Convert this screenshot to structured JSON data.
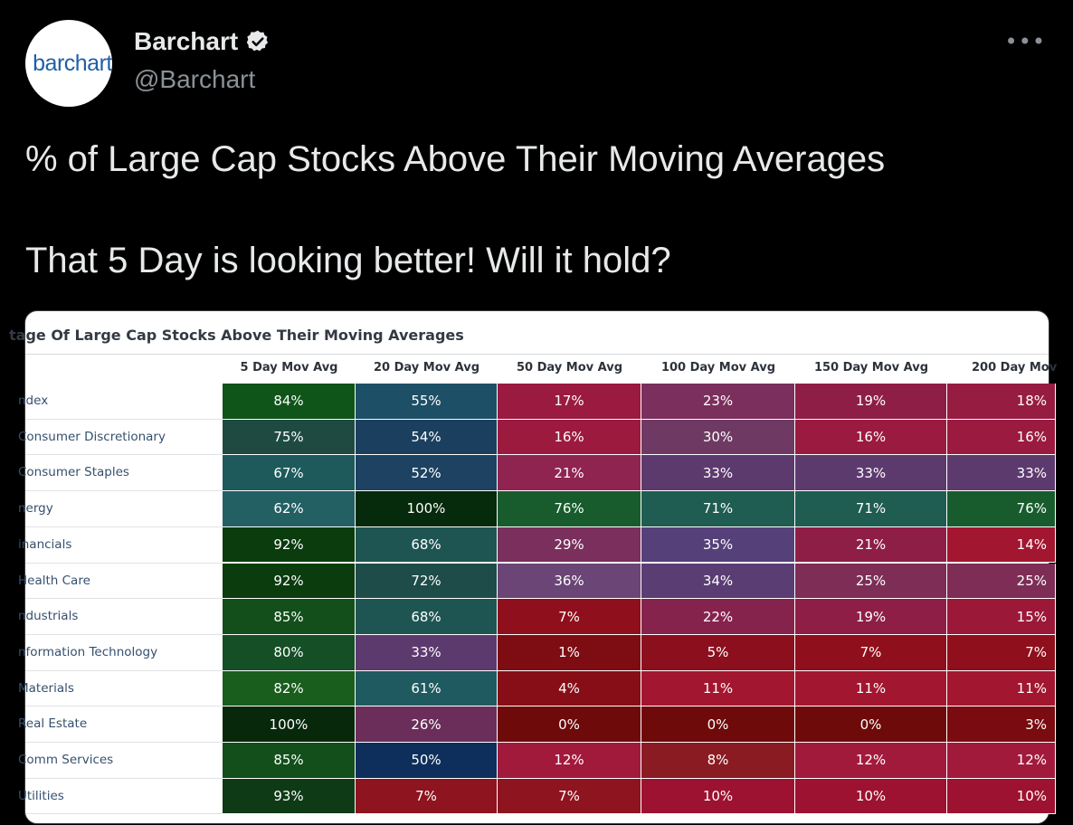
{
  "tweet": {
    "avatar_text": "barchart",
    "display_name": "Barchart",
    "handle": "@Barchart",
    "more_icon": "more-horizontal-icon",
    "verified_icon": "verified-badge-icon",
    "text_line1": "% of Large Cap Stocks Above Their Moving Averages",
    "text_line2": "That 5 Day is looking better!  Will it hold?"
  },
  "table": {
    "title": "tage Of Large Cap Stocks Above Their Moving Averages",
    "columns": [
      "5 Day Mov Avg",
      "20 Day Mov Avg",
      "50 Day Mov Avg",
      "100 Day Mov Avg",
      "150 Day Mov Avg",
      "200 Day Mov"
    ],
    "rows": [
      {
        "label": "ndex",
        "values": [
          "84%",
          "55%",
          "17%",
          "23%",
          "19%",
          "18%"
        ]
      },
      {
        "label": "Consumer Discretionary",
        "values": [
          "75%",
          "54%",
          "16%",
          "30%",
          "16%",
          "16%"
        ]
      },
      {
        "label": "Consumer Staples",
        "values": [
          "67%",
          "52%",
          "21%",
          "33%",
          "33%",
          "33%"
        ]
      },
      {
        "label": "nergy",
        "values": [
          "62%",
          "100%",
          "76%",
          "71%",
          "71%",
          "76%"
        ]
      },
      {
        "label": "inancials",
        "values": [
          "92%",
          "68%",
          "29%",
          "35%",
          "21%",
          "14%"
        ]
      },
      {
        "label": "Health Care",
        "values": [
          "92%",
          "72%",
          "36%",
          "34%",
          "25%",
          "25%"
        ]
      },
      {
        "label": "ndustrials",
        "values": [
          "85%",
          "68%",
          "7%",
          "22%",
          "19%",
          "15%"
        ]
      },
      {
        "label": "nformation Technology",
        "values": [
          "80%",
          "33%",
          "1%",
          "5%",
          "7%",
          "7%"
        ]
      },
      {
        "label": "Materials",
        "values": [
          "82%",
          "61%",
          "4%",
          "11%",
          "11%",
          "11%"
        ]
      },
      {
        "label": "Real Estate",
        "values": [
          "100%",
          "26%",
          "0%",
          "0%",
          "0%",
          "3%"
        ]
      },
      {
        "label": "Comm Services",
        "values": [
          "85%",
          "50%",
          "12%",
          "8%",
          "12%",
          "12%"
        ]
      },
      {
        "label": "Utilities",
        "values": [
          "93%",
          "7%",
          "7%",
          "10%",
          "10%",
          "10%"
        ]
      }
    ],
    "cell_colors": [
      [
        "#0f5418",
        "#1d4f66",
        "#9a1a40",
        "#7a2f5c",
        "#8e1e45",
        "#961c42"
      ],
      [
        "#1f4a42",
        "#1b3f5f",
        "#9b1a3e",
        "#6e3a63",
        "#9a1a40",
        "#9a1a40"
      ],
      [
        "#1e5a5c",
        "#1d4262",
        "#8f2450",
        "#5d3a6e",
        "#5d3a6e",
        "#5d3a6e"
      ],
      [
        "#236064",
        "#052a0c",
        "#185c2e",
        "#1f5c52",
        "#1f5c52",
        "#185c2e"
      ],
      [
        "#0a3c0e",
        "#1e5552",
        "#7a2f5c",
        "#56407a",
        "#8e1e45",
        "#a3162f"
      ],
      [
        "#0a3c0e",
        "#1e4c48",
        "#6a4576",
        "#5a3d72",
        "#7d2d56",
        "#7d2d56"
      ],
      [
        "#124f1a",
        "#1e5552",
        "#900f1c",
        "#86234d",
        "#8e1e45",
        "#9c1838"
      ],
      [
        "#154f26",
        "#5d3a6e",
        "#7d0d12",
        "#8c0f1e",
        "#900f1c",
        "#900f1c"
      ],
      [
        "#1a5e1e",
        "#1f5a60",
        "#870e17",
        "#a3162f",
        "#a3162f",
        "#a3162f"
      ],
      [
        "#08280c",
        "#6b2e5a",
        "#6e0a0a",
        "#6e0a0a",
        "#6e0a0a",
        "#7a0b10"
      ],
      [
        "#124f1a",
        "#0e2f5c",
        "#a11a3c",
        "#8a1b22",
        "#a11a3c",
        "#a11a3c"
      ],
      [
        "#0f3a16",
        "#8e1420",
        "#8e1420",
        "#9c1230",
        "#9c1230",
        "#9c1230"
      ]
    ]
  }
}
